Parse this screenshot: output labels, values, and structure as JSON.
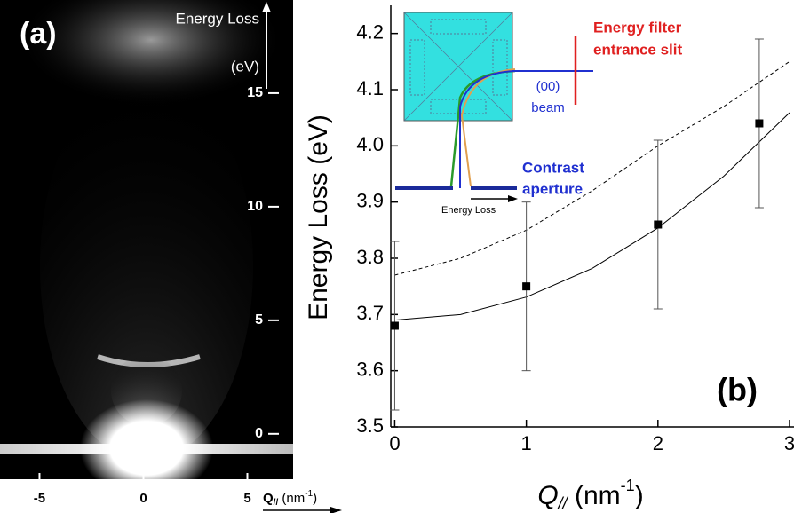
{
  "chart_data": [
    {
      "type": "image",
      "label": "(a)",
      "y_label": "Energy Loss",
      "y_unit": "(eV)",
      "x_label": {
        "symbol": "Q",
        "subscript": "//",
        "unit": " (nm",
        "superscript": "-1",
        "close": ")"
      },
      "xlim": [
        -6.9,
        7.2
      ],
      "xticks": [
        -5,
        0,
        5
      ],
      "ylim": [
        -2,
        19.1
      ],
      "yticks": [
        0,
        5,
        10,
        15
      ]
    },
    {
      "type": "scatter",
      "label": "(b)",
      "y_label": "Energy  Loss (eV)",
      "x_label": {
        "symbol": "Q",
        "subscript": "//",
        "unit": " (nm",
        "superscript": "-1",
        "close": ")"
      },
      "xlim": [
        -0.03,
        3
      ],
      "xticks": [
        0,
        1,
        2,
        3
      ],
      "ylim": [
        3.5,
        4.25
      ],
      "yticks": [
        3.5,
        3.6,
        3.7,
        3.8,
        3.9,
        {
          "value": 4,
          "label": "4.0"
        },
        4.1,
        4.2
      ],
      "points": {
        "color": "#000000",
        "x": [
          0,
          1,
          2,
          2.77
        ],
        "values": [
          3.68,
          3.75,
          3.86,
          4.04
        ],
        "errors": [
          0.15,
          0.15,
          0.15,
          0.15
        ]
      },
      "lines": [
        {
          "style": "solid",
          "color": "#000000",
          "x": [
            0,
            0.5,
            1,
            1.5,
            2,
            2.5,
            3
          ],
          "values": [
            3.69,
            3.7,
            3.731,
            3.782,
            3.854,
            3.946,
            4.059
          ]
        },
        {
          "style": "dashed",
          "color": "#000000",
          "x": [
            0,
            0.5,
            1,
            1.5,
            2,
            2.5,
            3
          ],
          "values": [
            3.77,
            3.8,
            3.85,
            3.92,
            4.0,
            4.07,
            4.15
          ]
        }
      ],
      "inset": {
        "slit_label": [
          "Energy filter",
          "entrance slit"
        ],
        "beam_label": [
          "(00)",
          "beam"
        ],
        "aperture_label": [
          "Contrast",
          "aperture"
        ],
        "axis_label": "Energy Loss"
      }
    }
  ]
}
